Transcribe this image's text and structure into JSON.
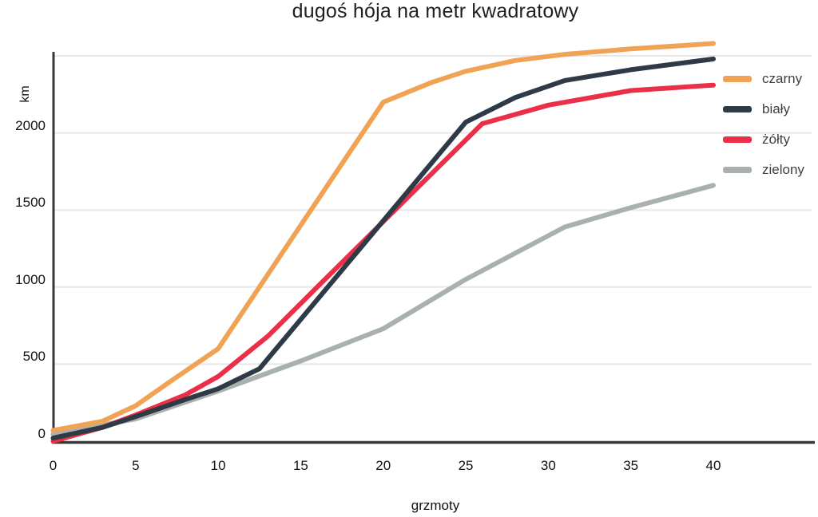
{
  "title": "dugoś hója na metr kwadratowy",
  "chart_data": {
    "type": "line",
    "title": "dugoś hója na metr kwadratowy",
    "xlabel": "grzmoty",
    "ylabel": "km",
    "xlim": [
      0,
      40
    ],
    "ylim": [
      0,
      2500
    ],
    "x_ticks": [
      0,
      5,
      10,
      15,
      20,
      25,
      30,
      35,
      40
    ],
    "y_ticks": [
      0,
      500,
      1000,
      1500,
      2000
    ],
    "gridline_values": [
      500,
      1000,
      1500,
      2000,
      2500
    ],
    "grid": "horizontal",
    "legend_position": "right",
    "series": [
      {
        "name": "czarny",
        "color": "#F0A355",
        "x": [
          0,
          3,
          5,
          7,
          10,
          15,
          20,
          23,
          25,
          28,
          31,
          35,
          40
        ],
        "y": [
          70,
          130,
          230,
          380,
          600,
          1400,
          2200,
          2330,
          2400,
          2470,
          2510,
          2545,
          2580
        ]
      },
      {
        "name": "biały",
        "color": "#2E3A46",
        "x": [
          0,
          3,
          5,
          8,
          10,
          12.5,
          15,
          20,
          25,
          28,
          31,
          35,
          40
        ],
        "y": [
          20,
          90,
          160,
          270,
          340,
          470,
          790,
          1430,
          2070,
          2230,
          2340,
          2410,
          2480
        ]
      },
      {
        "name": "żółty",
        "color": "#E93048",
        "x": [
          0,
          3,
          5,
          8,
          10,
          13,
          16,
          20,
          26,
          30,
          35,
          40
        ],
        "y": [
          0,
          90,
          170,
          300,
          420,
          680,
          1000,
          1425,
          2060,
          2180,
          2275,
          2310
        ]
      },
      {
        "name": "zielony",
        "color": "#A9B1AF",
        "x": [
          0,
          5,
          10,
          15,
          20,
          25,
          31,
          35,
          40
        ],
        "y": [
          45,
          145,
          325,
          520,
          730,
          1050,
          1390,
          1515,
          1660
        ]
      }
    ],
    "colors": {
      "gridline": "#E8E8E8",
      "axis": "#383838",
      "title_text": "#1F1F1F",
      "tick_text": "#111111",
      "legend_text": "#3C4045"
    }
  }
}
